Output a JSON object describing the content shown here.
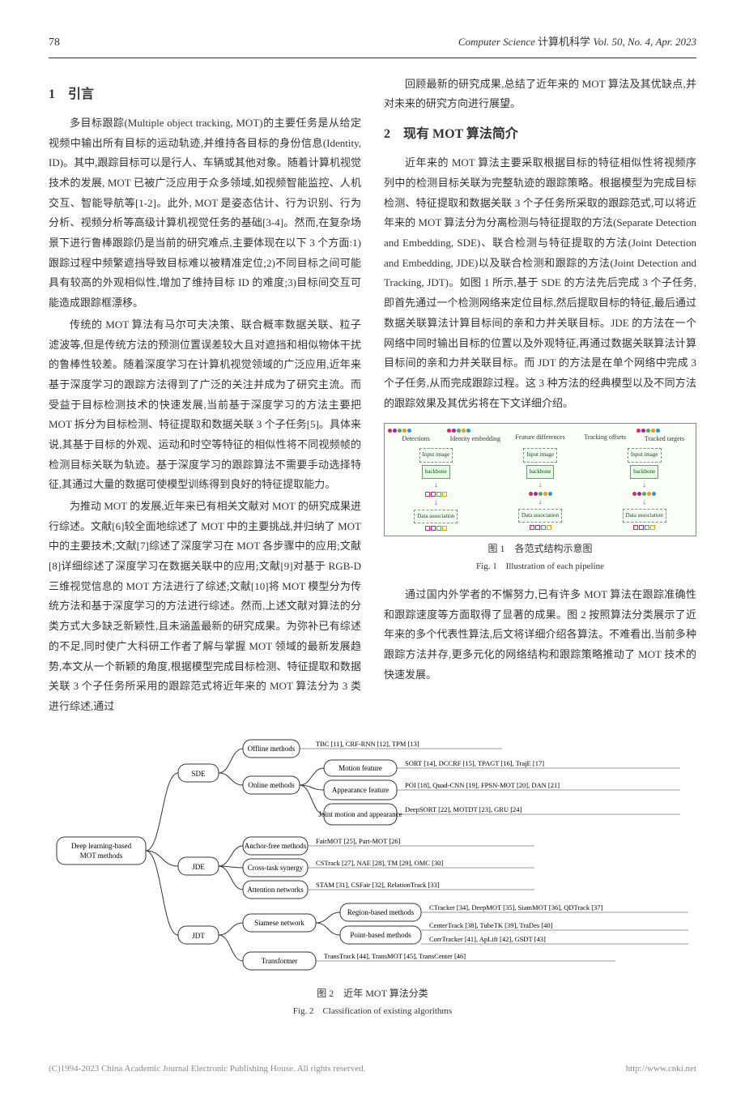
{
  "header": {
    "page": "78",
    "journal_en": "Computer Science",
    "journal_cn": "计算机科学",
    "issue": "Vol. 50, No. 4, Apr. 2023"
  },
  "section1": {
    "title": "1　引言",
    "p1": "多目标跟踪(Multiple object tracking, MOT)的主要任务是从给定视频中输出所有目标的运动轨迹,并维持各目标的身份信息(Identity, ID)。其中,跟踪目标可以是行人、车辆或其他对象。随着计算机视觉技术的发展, MOT 已被广泛应用于众多领域,如视频智能监控、人机交互、智能导航等[1-2]。此外, MOT 是姿态估计、行为识别、行为分析、视频分析等高级计算机视觉任务的基础[3-4]。然而,在复杂场景下进行鲁棒跟踪仍是当前的研究难点,主要体现在以下 3 个方面:1)跟踪过程中频繁遮挡导致目标难以被精准定位;2)不同目标之间可能具有较高的外观相似性,增加了维持目标 ID 的难度;3)目标间交互可能造成跟踪框漂移。",
    "p2": "传统的 MOT 算法有马尔可夫决策、联合概率数据关联、粒子滤波等,但是传统方法的预测位置误差较大且对遮挡和相似物体干扰的鲁棒性较差。随着深度学习在计算机视觉领域的广泛应用,近年来基于深度学习的跟踪方法得到了广泛的关注并成为了研究主流。而受益于目标检测技术的快速发展,当前基于深度学习的方法主要把 MOT 拆分为目标检测、特征提取和数据关联 3 个子任务[5]。具体来说,其基于目标的外观、运动和时空等特征的相似性将不同视频帧的检测目标关联为轨迹。基于深度学习的跟踪算法不需要手动选择特征,其通过大量的数据可使模型训练得到良好的特征提取能力。",
    "p3": "为推动 MOT 的发展,近年来已有相关文献对 MOT 的研究成果进行综述。文献[6]较全面地综述了 MOT 中的主要挑战,并归纳了 MOT 中的主要技术;文献[7]综述了深度学习在 MOT 各步骤中的应用;文献[8]详细综述了深度学习在数据关联中的应用;文献[9]对基于 RGB-D 三维视觉信息的 MOT 方法进行了综述;文献[10]将 MOT 模型分为传统方法和基于深度学习的方法进行综述。然而,上述文献对算法的分类方式大多缺乏新颖性,且未涵盖最新的研究成果。为弥补已有综述的不足,同时使广大科研工作者了解与掌握 MOT 领域的最新发展趋势,本文从一个新颖的角度,根据模型完成目标检测、特征提取和数据关联 3 个子任务所采用的跟踪范式将近年来的 MOT 算法分为 3 类进行综述,通过"
  },
  "col2top": {
    "p1": "回顾最新的研究成果,总结了近年来的 MOT 算法及其优缺点,并对未来的研究方向进行展望。"
  },
  "section2": {
    "title": "2　现有 MOT 算法简介",
    "p1": "近年来的 MOT 算法主要采取根据目标的特征相似性将视频序列中的检测目标关联为完整轨迹的跟踪策略。根据模型为完成目标检测、特征提取和数据关联 3 个子任务所采取的跟踪范式,可以将近年来的 MOT 算法分为分离检测与特征提取的方法(Separate Detection and Embedding, SDE)、联合检测与特征提取的方法(Joint Detection and Embedding, JDE)以及联合检测和跟踪的方法(Joint Detection and Tracking, JDT)。如图 1 所示,基于 SDE 的方法先后完成 3 个子任务,即首先通过一个检测网络来定位目标,然后提取目标的特征,最后通过数据关联算法计算目标间的亲和力并关联目标。JDE 的方法在一个网络中同时输出目标的位置以及外观特征,再通过数据关联算法计算目标间的亲和力并关联目标。而 JDT 的方法是在单个网络中完成 3 个子任务,从而完成跟踪过程。这 3 种方法的经典模型以及不同方法的跟踪效果及其优劣将在下文详细介绍。"
  },
  "fig1": {
    "toplabels": [
      "Detections",
      "Identity embedding",
      "Feature differences",
      "Tracking offsets",
      "Tracked targets"
    ],
    "inputlabel": "Input image",
    "backbone": "backbone",
    "data_assoc": "Data association",
    "caption_cn": "图 1　各范式结构示意图",
    "caption_en": "Fig. 1　Illustration of each pipeline",
    "dot_colors": [
      "#e91e63",
      "#9c27b0",
      "#4caf50",
      "#ff9800",
      "#2196f3"
    ],
    "sq_colors": [
      "#e91e63",
      "#9c27b0",
      "#4caf50",
      "#ff9800"
    ],
    "bg": "#f8fff4"
  },
  "section2b": {
    "p1": "通过国内外学者的不懈努力,已有许多 MOT 算法在跟踪准确性和跟踪速度等方面取得了显著的成果。图 2 按照算法分类展示了近年来的多个代表性算法,后文将详细介绍各算法。不难看出,当前多种跟踪方法并存,更多元化的网络结构和跟踪策略推动了 MOT 技术的快速发展。"
  },
  "fig2": {
    "caption_cn": "图 2　近年 MOT 算法分类",
    "caption_en": "Fig. 2　Classification of existing algorithms",
    "root": "Deep learning-based MOT methods",
    "l1": [
      "SDE",
      "JDE",
      "JDT"
    ],
    "sde": {
      "offline": {
        "label": "Offline methods",
        "leaf": "TBC [11], CRF-RNN [12], TPM [13]"
      },
      "online": {
        "label": "Online methods",
        "children": [
          {
            "label": "Motion feature",
            "leaf": "SORT [14], DCCRF [15], TPAGT [16], TrajE [17]"
          },
          {
            "label": "Appearance feature",
            "leaf": "POI [18], Quad-CNN [19], FPSN-MOT [20], DAN [21]"
          },
          {
            "label": "Joint motion and appearance",
            "leaf": "DeepSORT [22], MOTDT [23], GRU [24]"
          }
        ]
      }
    },
    "jde": [
      {
        "label": "Anchor-free methods",
        "leaf": "FairMOT [25], Part-MOT [26]"
      },
      {
        "label": "Cross-task synergy",
        "leaf": "CSTrack [27], NAE [28], TM [29], OMC [30]"
      },
      {
        "label": "Attention networks",
        "leaf": "STAM [31], CSFair [32], RelationTrack [33]"
      }
    ],
    "jdt": {
      "siamese": {
        "label": "Siamese network",
        "children": [
          {
            "label": "Region-based methods",
            "leaf": "CTracker [34], DeepMOT [35], SiamMOT [36], QDTrack [37]"
          },
          {
            "label": "Point-based methods",
            "leaf_a": "CenterTrack [38], TubeTK [39], TraDes [40]",
            "leaf_b": "CorrTracker [41], ApLift [42], GSDT [43]"
          }
        ]
      },
      "transformer": {
        "label": "Transformer",
        "leaf": "TransTrack [44], TransMOT [45], TransCenter [46]"
      }
    }
  },
  "footer": {
    "left": "(C)1994-2023 China Academic Journal Electronic Publishing House. All rights reserved.",
    "right": "http://www.cnki.net"
  }
}
